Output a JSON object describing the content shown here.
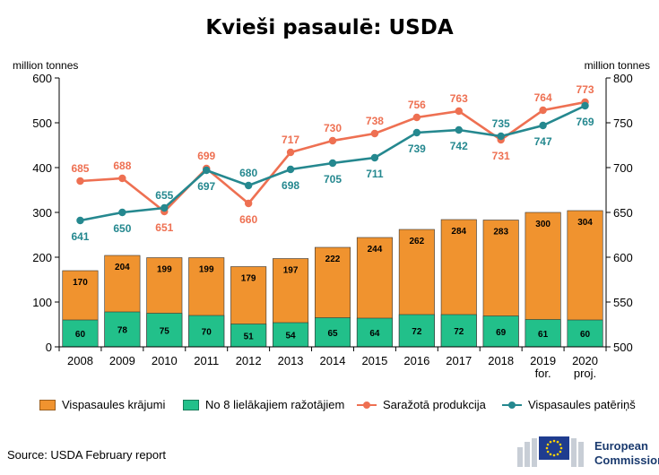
{
  "title": "Kvieši pasaulē: USDA",
  "y_left_unit": "million tonnes",
  "y_right_unit": "million tonnes",
  "source": "Source: USDA February report",
  "logo": {
    "line1": "European",
    "line2": "Commission"
  },
  "colors": {
    "stocks": "#f0932f",
    "top8": "#22c08a",
    "production": "#ee7052",
    "consumption": "#25888f",
    "axis": "#000000"
  },
  "legend": [
    {
      "label": "Vispasaules krājumi",
      "kind": "bar",
      "color": "#f0932f"
    },
    {
      "label": "No 8 lielākajiem ražotājiem",
      "kind": "bar",
      "color": "#22c08a"
    },
    {
      "label": "Saražotā produkcija",
      "kind": "line",
      "color": "#ee7052"
    },
    {
      "label": "Vispasaules patēriņš",
      "kind": "line",
      "color": "#25888f"
    }
  ],
  "chart_data": {
    "type": "bar",
    "title": "Kvieši pasaulē: USDA",
    "categories": [
      [
        "2008"
      ],
      [
        "2009"
      ],
      [
        "2010"
      ],
      [
        "2011"
      ],
      [
        "2012"
      ],
      [
        "2013"
      ],
      [
        "2014"
      ],
      [
        "2015"
      ],
      [
        "2016"
      ],
      [
        "2017"
      ],
      [
        "2018"
      ],
      [
        "2019",
        "for."
      ],
      [
        "2020",
        "proj."
      ]
    ],
    "y_left": {
      "label": "million tonnes",
      "range": [
        0,
        600
      ],
      "ticks": [
        0,
        100,
        200,
        300,
        400,
        500,
        600
      ]
    },
    "y_right": {
      "label": "million tonnes",
      "range": [
        500,
        800
      ],
      "ticks": [
        500,
        550,
        600,
        650,
        700,
        750,
        800
      ]
    },
    "bar_series": [
      {
        "name": "Vispasaules krājumi",
        "axis": "left",
        "values": [
          170,
          204,
          199,
          199,
          179,
          197,
          222,
          244,
          262,
          284,
          283,
          300,
          304
        ]
      },
      {
        "name": "No 8 lielākajiem ražotājiem",
        "axis": "left",
        "values": [
          60,
          78,
          75,
          70,
          51,
          54,
          65,
          64,
          72,
          72,
          69,
          61,
          60
        ]
      }
    ],
    "line_series": [
      {
        "name": "Saražotā produkcija",
        "axis": "right",
        "values": [
          685,
          688,
          651,
          699,
          660,
          717,
          730,
          738,
          756,
          763,
          731,
          764,
          773
        ]
      },
      {
        "name": "Vispasaules patēriņš",
        "axis": "right",
        "values": [
          641,
          650,
          655,
          697,
          680,
          698,
          705,
          711,
          739,
          742,
          735,
          747,
          769
        ]
      }
    ],
    "grid": false,
    "legend_position": "bottom"
  }
}
